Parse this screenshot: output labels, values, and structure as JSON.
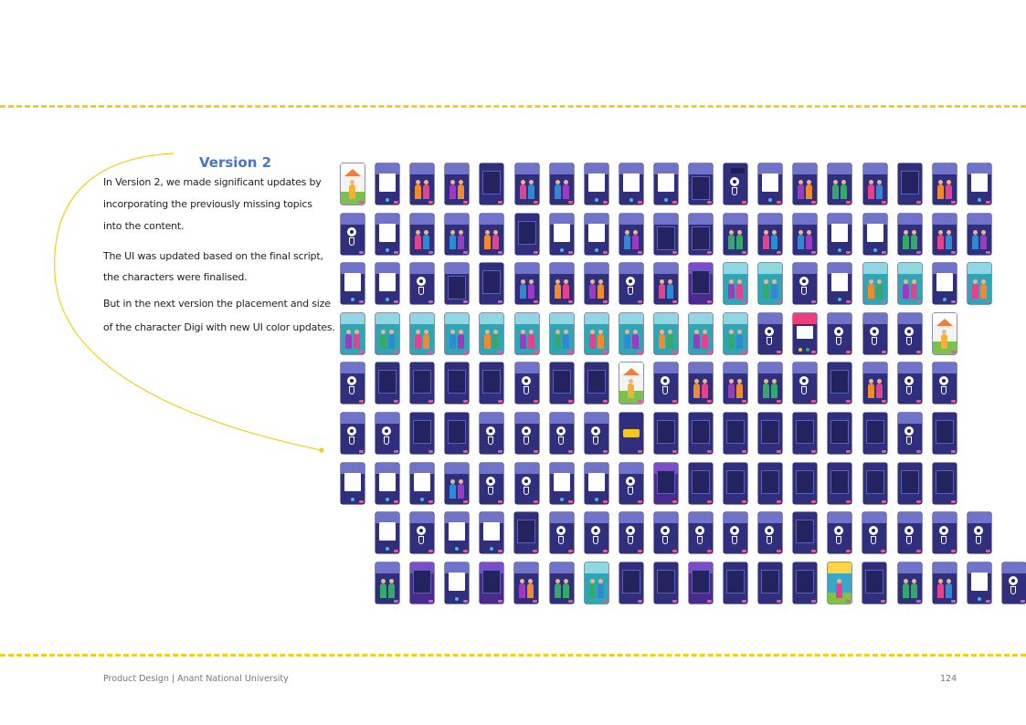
{
  "section": {
    "title": "Version 2",
    "paragraphs": [
      "In Version 2, we made significant updates by",
      "incorporating the previously missing topics",
      "into the content.",
      "The UI was updated based on the final script,",
      "the characters were finalised.",
      "But in the next version the placement and size",
      "of the character Digi with new UI color updates."
    ]
  },
  "colors": {
    "accent_title": "#4a74c9",
    "dash_line": "#f2cf1f",
    "screen_navy": "#2f2f7e",
    "screen_teal": "#2ea6b5"
  },
  "grid": {
    "rows": [
      [
        "scene-app",
        "box",
        "fig",
        "fig",
        "dark",
        "fig",
        "fig",
        "box",
        "box",
        "box",
        "hdr",
        "bubble",
        "box",
        "fig",
        "fig",
        "fig",
        "dark",
        "fig",
        "box"
      ],
      [
        "face",
        "box",
        "fig",
        "fig",
        "fig",
        "dark",
        "box",
        "box",
        "fig",
        "hdr",
        "hdr",
        "fig",
        "fig",
        "fig",
        "box",
        "box",
        "fig",
        "fig",
        "fig"
      ],
      [
        "box",
        "box",
        "face",
        "hdr",
        "dark",
        "fig",
        "fig",
        "fig",
        "face",
        "fig",
        "mag",
        "teal",
        "teal",
        "face",
        "box",
        "teal",
        "teal",
        "box",
        "teal"
      ],
      [
        "teal",
        "teal",
        "teal",
        "teal",
        "teal",
        "teal",
        "teal",
        "teal",
        "teal",
        "teal",
        "teal",
        "teal",
        "face",
        "pink",
        "face",
        "face",
        "face",
        "scene"
      ],
      [
        "face",
        "dark",
        "dark",
        "dark",
        "dark",
        "face",
        "dark",
        "dark",
        "scene",
        "face",
        "fig",
        "fig",
        "fig",
        "face",
        "dark",
        "fig",
        "face",
        "face"
      ],
      [
        "face",
        "face",
        "dark",
        "dark",
        "face",
        "face",
        "face",
        "face",
        "bus",
        "dark",
        "dark",
        "dark",
        "dark",
        "dark",
        "dark",
        "dark",
        "face",
        "dark"
      ],
      [
        "box",
        "box",
        "box",
        "fig",
        "face",
        "face",
        "box",
        "box",
        "face",
        "mag",
        "dark",
        "dark",
        "dark",
        "dark",
        "dark",
        "dark",
        "dark",
        "dark"
      ],
      [
        "box",
        "face",
        "box",
        "box",
        "dark",
        "face",
        "face",
        "face",
        "face",
        "face",
        "face",
        "face",
        "dark",
        "face",
        "face",
        "face",
        "face",
        "face"
      ],
      [
        "fig",
        "mag",
        "box",
        "mag",
        "fig",
        "fig",
        "teal",
        "dark",
        "dark",
        "mag",
        "dark",
        "dark",
        "dark",
        "green",
        "dark",
        "fig",
        "fig",
        "box",
        "face"
      ]
    ]
  },
  "footer": {
    "left": "Product Design | Anant National University",
    "page_number": "124"
  }
}
